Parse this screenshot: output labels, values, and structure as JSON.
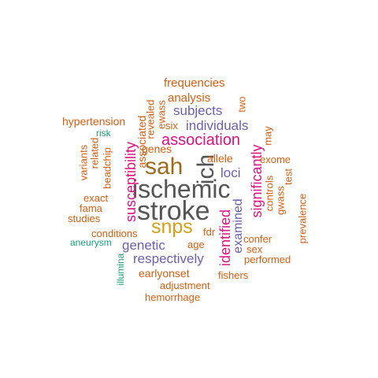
{
  "colors": {
    "gray": "#555555",
    "olive": "#9c6b1d",
    "gold": "#d4a017",
    "magenta": "#e0117f",
    "purple": "#6b5fb0",
    "orange": "#d45f12",
    "teal": "#1b9e77"
  },
  "words": [
    {
      "text": "stroke",
      "color": "gray"
    },
    {
      "text": "ischemic",
      "color": "gray"
    },
    {
      "text": "sah",
      "color": "olive"
    },
    {
      "text": "ich",
      "color": "gray"
    },
    {
      "text": "snps",
      "color": "gold"
    },
    {
      "text": "association",
      "color": "magenta"
    },
    {
      "text": "susceptibility",
      "color": "magenta"
    },
    {
      "text": "significantly",
      "color": "magenta"
    },
    {
      "text": "identified",
      "color": "magenta"
    },
    {
      "text": "individuals",
      "color": "purple"
    },
    {
      "text": "subjects",
      "color": "purple"
    },
    {
      "text": "genetic",
      "color": "purple"
    },
    {
      "text": "respectively",
      "color": "purple"
    },
    {
      "text": "examined",
      "color": "purple"
    },
    {
      "text": "loci",
      "color": "purple"
    },
    {
      "text": "frequencies",
      "color": "orange"
    },
    {
      "text": "analysis",
      "color": "orange"
    },
    {
      "text": "hypertension",
      "color": "orange"
    },
    {
      "text": "associated",
      "color": "orange"
    },
    {
      "text": "revealed",
      "color": "orange"
    },
    {
      "text": "ewass",
      "color": "orange"
    },
    {
      "text": "two",
      "color": "orange"
    },
    {
      "text": "six",
      "color": "orange"
    },
    {
      "text": "genes",
      "color": "orange"
    },
    {
      "text": "allele",
      "color": "orange"
    },
    {
      "text": "may",
      "color": "orange"
    },
    {
      "text": "exome",
      "color": "orange"
    },
    {
      "text": "variants",
      "color": "orange"
    },
    {
      "text": "related",
      "color": "orange"
    },
    {
      "text": "beadchip",
      "color": "orange"
    },
    {
      "text": "exact",
      "color": "orange"
    },
    {
      "text": "fama",
      "color": "orange"
    },
    {
      "text": "studies",
      "color": "orange"
    },
    {
      "text": "controls",
      "color": "orange"
    },
    {
      "text": "test",
      "color": "orange"
    },
    {
      "text": "gwass",
      "color": "orange"
    },
    {
      "text": "prevalence",
      "color": "orange"
    },
    {
      "text": "conditions",
      "color": "orange"
    },
    {
      "text": "age",
      "color": "orange"
    },
    {
      "text": "fdr",
      "color": "orange"
    },
    {
      "text": "confer",
      "color": "orange"
    },
    {
      "text": "sex",
      "color": "orange"
    },
    {
      "text": "performed",
      "color": "orange"
    },
    {
      "text": "earlyonset",
      "color": "orange"
    },
    {
      "text": "adjustment",
      "color": "orange"
    },
    {
      "text": "fishers",
      "color": "orange"
    },
    {
      "text": "hemorrhage",
      "color": "orange"
    },
    {
      "text": "risk",
      "color": "teal"
    },
    {
      "text": "aneurysm",
      "color": "teal"
    },
    {
      "text": "illumina",
      "color": "teal"
    }
  ]
}
